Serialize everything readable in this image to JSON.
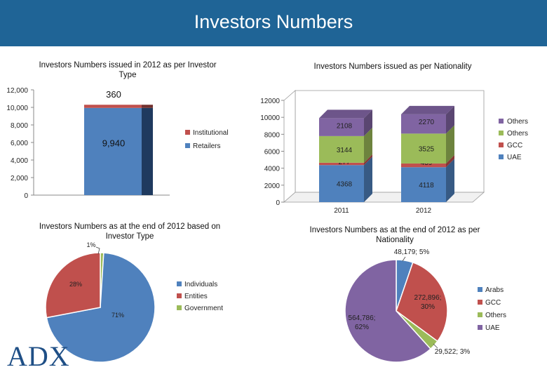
{
  "header": {
    "title": "Investors Numbers"
  },
  "chart_data": [
    {
      "type": "bar",
      "stacked": true,
      "title": "Investors Numbers issued in 2012 as per Investor Type",
      "categories": [
        ""
      ],
      "series": [
        {
          "name": "Retailers",
          "values": [
            9940
          ],
          "label": "9,940",
          "color": "#4f81bd"
        },
        {
          "name": "Institutional",
          "values": [
            360
          ],
          "label": "360",
          "color": "#c0504d"
        }
      ],
      "yticks": [
        "0",
        "2,000",
        "4,000",
        "6,000",
        "8,000",
        "10,000",
        "12,000"
      ],
      "ylim": [
        0,
        12000
      ],
      "legend": "right"
    },
    {
      "type": "bar",
      "stacked": true,
      "title": "Investors Numbers issued as per Nationality",
      "categories": [
        "2011",
        "2012"
      ],
      "series": [
        {
          "name": "UAE",
          "values": [
            4368,
            4118
          ],
          "labels": [
            "4368",
            "4118"
          ],
          "color": "#4f81bd"
        },
        {
          "name": "GCC",
          "values": [
            277,
            439
          ],
          "labels": [
            "277",
            "439"
          ],
          "color": "#c0504d"
        },
        {
          "name": "Others",
          "values": [
            3144,
            3525
          ],
          "labels": [
            "3144",
            "3525"
          ],
          "color": "#9bbb59"
        },
        {
          "name": "Others",
          "values": [
            2108,
            2270
          ],
          "labels": [
            "2108",
            "2270"
          ],
          "color": "#8064a2"
        }
      ],
      "yticks": [
        "0",
        "2000",
        "4000",
        "6000",
        "8000",
        "10000",
        "12000"
      ],
      "ylim": [
        0,
        12000
      ],
      "legend": "right"
    },
    {
      "type": "pie",
      "title": "Investors Numbers as at the end of 2012 based on Investor Type",
      "labels": [
        "Individuals",
        "Entities",
        "Government"
      ],
      "values": [
        71,
        28,
        1
      ],
      "data_labels": [
        "71%",
        "28%",
        "1%"
      ],
      "colors": [
        "#4f81bd",
        "#c0504d",
        "#9bbb59"
      ],
      "legend": "right"
    },
    {
      "type": "pie",
      "title": "Investors Numbers as at the end of 2012 as per Nationality",
      "labels": [
        "Arabs",
        "GCC",
        "Others",
        "UAE"
      ],
      "values": [
        48179,
        272896,
        29522,
        564786
      ],
      "data_labels": [
        "48,179; 5%",
        "272,896; 30%",
        "29,522; 3%",
        "564,786; 62%"
      ],
      "colors": [
        "#4f81bd",
        "#c0504d",
        "#9bbb59",
        "#8064a2"
      ],
      "legend": "right"
    }
  ],
  "logo": {
    "text": "ADX"
  }
}
